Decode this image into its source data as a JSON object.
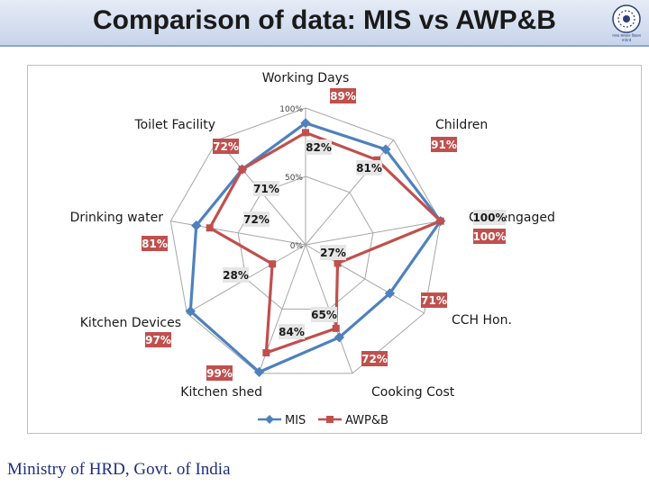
{
  "title": "Comparison of data: MIS vs AWP&B",
  "footer": "Ministry of HRD, Govt. of India",
  "logo_text": [
    "मानव संसाधन विकास",
    "mhrd"
  ],
  "chart_data": {
    "type": "radar",
    "categories": [
      "Working Days",
      "Children",
      "CCH engaged",
      "CCH Hon.",
      "Cooking Cost",
      "Kitchen shed",
      "Kitchen Devices",
      "Drinking water",
      "Toilet Facility"
    ],
    "tick_labels": [
      "0%",
      "50%",
      "100%"
    ],
    "rlim": [
      0,
      100
    ],
    "series": [
      {
        "name": "MIS",
        "color": "#4f81bd",
        "values": [
          89,
          91,
          100,
          71,
          72,
          99,
          97,
          81,
          72
        ],
        "labels": [
          "89%",
          "91%",
          "100%",
          "71%",
          "72%",
          "99%",
          "97%",
          "81%",
          "72%"
        ]
      },
      {
        "name": "AWP&B",
        "color": "#c0504d",
        "values": [
          82,
          81,
          100,
          27,
          65,
          84,
          28,
          71,
          72
        ],
        "labels": [
          "82%",
          "81%",
          "100%",
          "27%",
          "65%",
          "84%",
          "28%",
          "71%",
          "72%"
        ]
      }
    ],
    "legend": "bottom",
    "grid": true
  }
}
